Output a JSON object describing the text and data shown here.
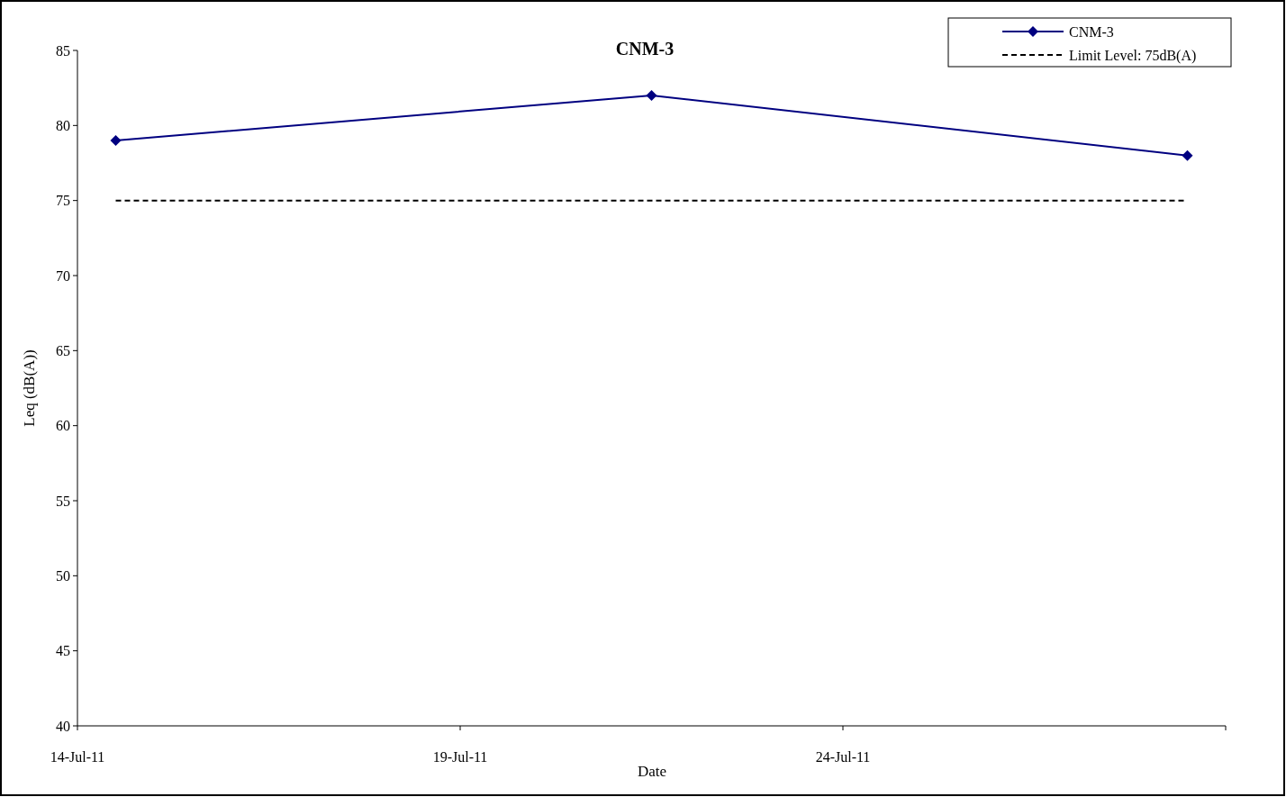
{
  "chart_data": {
    "type": "line",
    "title": "CNM-3",
    "xlabel": "Date",
    "ylabel": "Leq (dB(A))",
    "x": [
      "--07-14T12:00",
      "--07-21T12:00",
      "--07-28T12:00"
    ],
    "series": [
      {
        "name": "CNM-3",
        "color": "#000080",
        "values": [
          79,
          82,
          78
        ],
        "marker": "diamond",
        "line_style": "solid"
      },
      {
        "name": "Limit Level: 75dB(A)",
        "color": "#000000",
        "values": [
          75,
          75,
          75
        ],
        "marker": "none",
        "line_style": "dashed"
      }
    ],
    "xlim": [
      "--07-14",
      "--07-29"
    ],
    "xticks": [
      {
        "value": "--07-14",
        "label": "14-Jul-11"
      },
      {
        "value": "--07-19",
        "label": "19-Jul-11"
      },
      {
        "value": "--07-24",
        "label": "24-Jul-11"
      },
      {
        "value": "--07-29",
        "label": null
      }
    ],
    "ylim": [
      40,
      85
    ],
    "yticks": [
      40,
      45,
      50,
      55,
      60,
      65,
      70,
      75,
      80,
      85
    ],
    "grid": false,
    "legend": "top right"
  }
}
